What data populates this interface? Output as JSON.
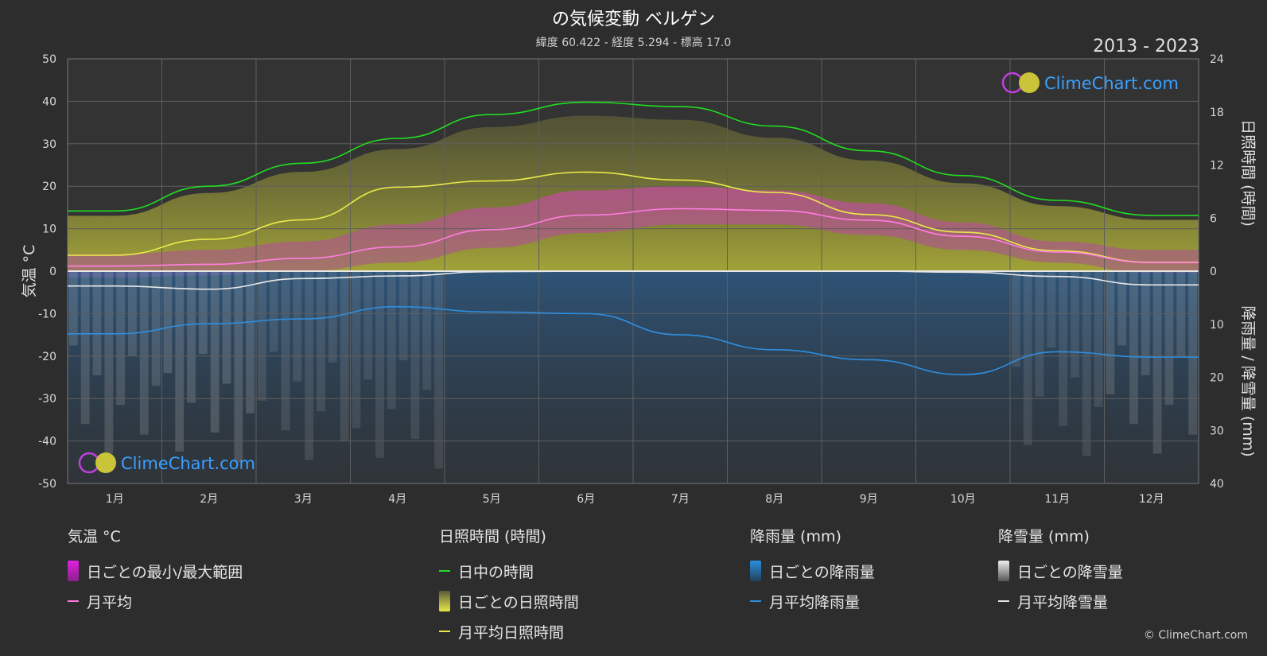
{
  "header": {
    "title": "の気候変動 ベルゲン",
    "subtitle": "緯度 60.422 - 経度 5.294 - 標高 17.0",
    "years": "2013 - 2023",
    "copyright": "© ClimeChart.com"
  },
  "logo": {
    "text": "ClimeChart.com"
  },
  "chart_data": {
    "type": "line",
    "categories": [
      "1月",
      "2月",
      "3月",
      "4月",
      "5月",
      "6月",
      "7月",
      "8月",
      "9月",
      "10月",
      "11月",
      "12月"
    ],
    "axes": {
      "y_left": {
        "label": "気温 °C",
        "range": [
          -50,
          50
        ],
        "ticks": [
          50,
          40,
          30,
          20,
          10,
          0,
          -10,
          -20,
          -30,
          -40,
          -50
        ]
      },
      "y_right_top": {
        "label": "日照時間 (時間)",
        "range": [
          0,
          24
        ],
        "ticks": [
          24,
          18,
          12,
          6,
          0
        ]
      },
      "y_right_bottom": {
        "label": "降雨量 / 降雪量 (mm)",
        "range": [
          0,
          40
        ],
        "ticks": [
          10,
          20,
          30,
          40
        ]
      }
    },
    "series": [
      {
        "name": "日中の時間",
        "unit": "時間",
        "color": "#22dd22",
        "values": [
          6.8,
          9.6,
          12.2,
          15.0,
          17.7,
          19.1,
          18.6,
          16.4,
          13.6,
          10.8,
          8.0,
          6.3
        ]
      },
      {
        "name": "月平均日照時間",
        "unit": "時間",
        "color": "#e8e84a",
        "values": [
          1.8,
          3.6,
          5.8,
          9.5,
          10.2,
          11.2,
          10.3,
          8.9,
          6.4,
          4.4,
          2.3,
          1.0
        ]
      },
      {
        "name": "月平均",
        "unit": "°C",
        "color": "#ff7de0",
        "values": [
          1.2,
          1.6,
          3.0,
          5.7,
          9.8,
          13.2,
          14.7,
          14.3,
          12.0,
          8.2,
          4.5,
          2.0
        ]
      },
      {
        "name": "月平均降雨量",
        "unit": "mm",
        "color": "#2e8ee0",
        "values": [
          11.8,
          9.9,
          9.0,
          6.7,
          7.7,
          8.0,
          12.0,
          14.8,
          16.7,
          19.5,
          15.2,
          16.2
        ]
      },
      {
        "name": "月平均降雪量",
        "unit": "mm",
        "color": "#e8e8e8",
        "values": [
          2.8,
          3.4,
          1.4,
          0.9,
          0.1,
          0.0,
          0.0,
          0.0,
          0.0,
          0.2,
          1.0,
          2.6
        ]
      }
    ],
    "daily_temperature_range": {
      "name": "日ごとの最小/最大範囲",
      "min": [
        -1.5,
        -1.0,
        0.0,
        2.0,
        5.5,
        9.0,
        11.0,
        11.0,
        8.5,
        5.0,
        2.0,
        -0.5
      ],
      "max": [
        4.0,
        5.0,
        7.0,
        11.0,
        15.0,
        19.0,
        20.0,
        19.0,
        16.0,
        11.5,
        7.0,
        5.0
      ]
    },
    "grid": true
  },
  "legend": {
    "groups": [
      {
        "heading": "気温 °C",
        "items": [
          {
            "label": "日ごとの最小/最大範囲",
            "kind": "box",
            "color": "#e020e0"
          },
          {
            "label": "月平均",
            "kind": "line",
            "color": "#ff7de0"
          }
        ]
      },
      {
        "heading": "日照時間 (時間)",
        "items": [
          {
            "label": "日中の時間",
            "kind": "line",
            "color": "#22dd22"
          },
          {
            "label": "日ごとの日照時間",
            "kind": "box",
            "color": "#d6d64a"
          },
          {
            "label": "月平均日照時間",
            "kind": "line",
            "color": "#e8e84a"
          }
        ]
      },
      {
        "heading": "降雨量 (mm)",
        "items": [
          {
            "label": "日ごとの降雨量",
            "kind": "box",
            "color": "#2a7fd0"
          },
          {
            "label": "月平均降雨量",
            "kind": "line",
            "color": "#2e8ee0"
          }
        ]
      },
      {
        "heading": "降雪量 (mm)",
        "items": [
          {
            "label": "日ごとの降雪量",
            "kind": "box",
            "color": "#e0e0e0"
          },
          {
            "label": "月平均降雪量",
            "kind": "line",
            "color": "#e8e8e8"
          }
        ]
      }
    ]
  }
}
